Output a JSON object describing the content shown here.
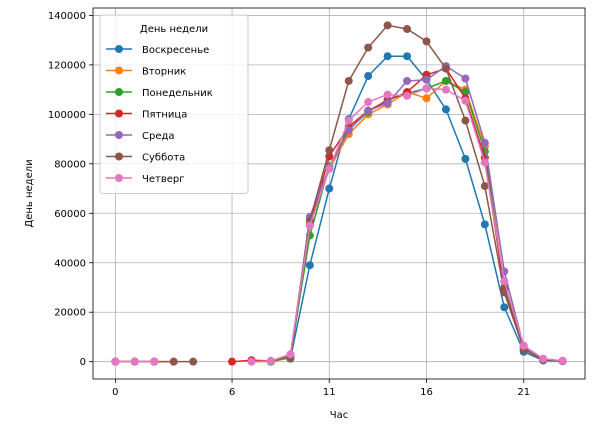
{
  "chart_data": {
    "type": "line",
    "xlabel": "Час",
    "ylabel": "День недели",
    "xlim": [
      -1.15,
      24.15
    ],
    "ylim": [
      -7000,
      143000
    ],
    "xticks": [
      0,
      6,
      11,
      16,
      21
    ],
    "yticks": [
      0,
      20000,
      40000,
      60000,
      80000,
      100000,
      120000,
      140000
    ],
    "grid": true,
    "legend": {
      "title": "День недели",
      "position": "top-left"
    },
    "series": [
      {
        "name": "Воскресенье",
        "color": "#1f77b4",
        "x": [
          0,
          1,
          2,
          3,
          4,
          5,
          6,
          7,
          8,
          9,
          10,
          11,
          12,
          13,
          14,
          15,
          16,
          17,
          18,
          19,
          20,
          21,
          22,
          23
        ],
        "y": [
          null,
          null,
          null,
          null,
          null,
          null,
          null,
          null,
          null,
          1200,
          39000,
          70000,
          98000,
          115500,
          123500,
          123500,
          114000,
          102000,
          82000,
          55500,
          22000,
          4000,
          500,
          200
        ]
      },
      {
        "name": "Вторник",
        "color": "#ff7f0e",
        "x": [
          0,
          1,
          2,
          3,
          4,
          5,
          6,
          7,
          8,
          9,
          10,
          11,
          12,
          13,
          14,
          15,
          16,
          17,
          18,
          19,
          20,
          21,
          22,
          23
        ],
        "y": [
          0,
          0,
          0,
          0,
          null,
          null,
          null,
          0,
          0,
          1500,
          56000,
          78000,
          92000,
          100000,
          104000,
          109000,
          106500,
          113500,
          110000,
          87000,
          30000,
          5000,
          800,
          300
        ]
      },
      {
        "name": "Понедельник",
        "color": "#2ca02c",
        "x": [
          0,
          1,
          2,
          3,
          4,
          5,
          6,
          7,
          8,
          9,
          10,
          11,
          12,
          13,
          14,
          15,
          16,
          17,
          18,
          19,
          20,
          21,
          22,
          23
        ],
        "y": [
          0,
          0,
          0,
          null,
          null,
          null,
          null,
          null,
          0,
          2000,
          51000,
          79000,
          94000,
          101000,
          106000,
          108500,
          110500,
          113500,
          109000,
          85000,
          30000,
          5500,
          900,
          300
        ]
      },
      {
        "name": "Пятница",
        "color": "#d62728",
        "x": [
          0,
          1,
          2,
          3,
          4,
          5,
          6,
          7,
          8,
          9,
          10,
          11,
          12,
          13,
          14,
          15,
          16,
          17,
          18,
          19,
          20,
          21,
          22,
          23
        ],
        "y": [
          0,
          0,
          0,
          null,
          null,
          null,
          0,
          600,
          300,
          2500,
          55000,
          83000,
          95000,
          101500,
          105500,
          109000,
          116000,
          118500,
          106500,
          82500,
          29000,
          5500,
          900,
          300
        ]
      },
      {
        "name": "Среда",
        "color": "#9467bd",
        "x": [
          0,
          1,
          2,
          3,
          4,
          5,
          6,
          7,
          8,
          9,
          10,
          11,
          12,
          13,
          14,
          15,
          16,
          17,
          18,
          19,
          20,
          21,
          22,
          23
        ],
        "y": [
          null,
          null,
          null,
          null,
          null,
          null,
          null,
          null,
          null,
          1800,
          58500,
          78500,
          93500,
          101500,
          104500,
          113500,
          114000,
          119500,
          114500,
          88500,
          36500,
          6000,
          1000,
          300
        ]
      },
      {
        "name": "Суббота",
        "color": "#8c564b",
        "x": [
          0,
          1,
          2,
          3,
          4,
          5,
          6,
          7,
          8,
          9,
          10,
          11,
          12,
          13,
          14,
          15,
          16,
          17,
          18,
          19,
          20,
          21,
          22,
          23
        ],
        "y": [
          0,
          0,
          0,
          0,
          0,
          null,
          null,
          null,
          null,
          1500,
          57000,
          85500,
          113500,
          127000,
          136000,
          134500,
          129500,
          118500,
          97500,
          71000,
          28000,
          5000,
          800,
          300
        ]
      },
      {
        "name": "Четверг",
        "color": "#e377c2",
        "x": [
          0,
          1,
          2,
          3,
          4,
          5,
          6,
          7,
          8,
          9,
          10,
          11,
          12,
          13,
          14,
          15,
          16,
          17,
          18,
          19,
          20,
          21,
          22,
          23
        ],
        "y": [
          0,
          0,
          0,
          null,
          null,
          null,
          null,
          0,
          300,
          3000,
          55000,
          78000,
          97500,
          105000,
          108000,
          107500,
          110500,
          110000,
          105500,
          80500,
          32500,
          6500,
          1200,
          400
        ]
      }
    ]
  }
}
